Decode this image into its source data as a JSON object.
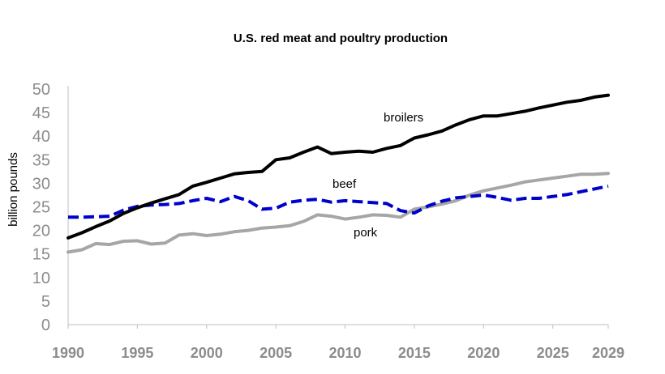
{
  "chart_data": {
    "type": "line",
    "title": "U.S. red meat and poultry production",
    "xlabel": "",
    "ylabel": "billion pounds",
    "xlim": [
      1990,
      2029
    ],
    "ylim": [
      0,
      50
    ],
    "y_ticks": [
      "0",
      "5",
      "10",
      "15",
      "20",
      "25",
      "30",
      "35",
      "40",
      "45",
      "50"
    ],
    "x_ticks": [
      "1990",
      "1995",
      "2000",
      "2005",
      "2010",
      "2015",
      "2020",
      "2025",
      "2029"
    ],
    "grid": false,
    "legend": "none (series labeled directly on chart)",
    "x": [
      1990,
      1991,
      1992,
      1993,
      1994,
      1995,
      1996,
      1997,
      1998,
      1999,
      2000,
      2001,
      2002,
      2003,
      2004,
      2005,
      2006,
      2007,
      2008,
      2009,
      2010,
      2011,
      2012,
      2013,
      2014,
      2015,
      2016,
      2017,
      2018,
      2019,
      2020,
      2021,
      2022,
      2023,
      2024,
      2025,
      2026,
      2027,
      2028,
      2029
    ],
    "series": [
      {
        "name": "broilers",
        "color": "#000000",
        "style": "solid",
        "values": [
          18.4,
          19.5,
          20.8,
          22.0,
          23.6,
          24.8,
          25.8,
          26.7,
          27.6,
          29.4,
          30.2,
          31.1,
          32.0,
          32.3,
          32.5,
          35.0,
          35.4,
          36.6,
          37.7,
          36.3,
          36.6,
          36.8,
          36.6,
          37.4,
          38.0,
          39.6,
          40.3,
          41.1,
          42.4,
          43.5,
          44.3,
          44.3,
          44.8,
          45.3,
          46.0,
          46.6,
          47.2,
          47.6,
          48.3,
          48.7
        ]
      },
      {
        "name": "beef",
        "color": "#0000cc",
        "style": "dashed",
        "values": [
          22.8,
          22.8,
          22.9,
          23.0,
          24.3,
          25.1,
          25.4,
          25.5,
          25.7,
          26.3,
          26.8,
          26.1,
          27.2,
          26.3,
          24.5,
          24.7,
          26.0,
          26.4,
          26.6,
          26.0,
          26.3,
          26.1,
          25.9,
          25.7,
          24.2,
          23.7,
          25.2,
          26.2,
          26.9,
          27.2,
          27.5,
          27.0,
          26.4,
          26.8,
          26.8,
          27.2,
          27.6,
          28.2,
          28.8,
          29.4
        ]
      },
      {
        "name": "pork",
        "color": "#a6a6a6",
        "style": "solid",
        "values": [
          15.4,
          15.9,
          17.2,
          17.0,
          17.7,
          17.8,
          17.1,
          17.3,
          19.0,
          19.3,
          18.9,
          19.2,
          19.7,
          20.0,
          20.5,
          20.7,
          21.0,
          21.9,
          23.3,
          23.0,
          22.4,
          22.8,
          23.3,
          23.2,
          22.8,
          24.5,
          25.0,
          25.6,
          26.3,
          27.5,
          28.4,
          29.0,
          29.6,
          30.3,
          30.7,
          31.1,
          31.5,
          31.9,
          31.9,
          32.1
        ]
      }
    ]
  }
}
